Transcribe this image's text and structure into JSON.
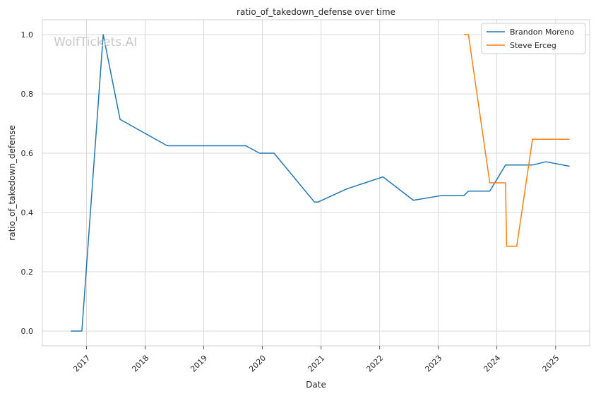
{
  "watermark": "WolfTickets.AI",
  "chart_data": {
    "type": "line",
    "title": "ratio_of_takedown_defense over time",
    "xlabel": "Date",
    "ylabel": "ratio_of_takedown_defense",
    "x_type": "date",
    "xlim": [
      "2016-04-01",
      "2025-08-01"
    ],
    "ylim": [
      -0.05,
      1.05
    ],
    "x_ticks": [
      "2017-01-01",
      "2018-01-01",
      "2019-01-01",
      "2020-01-01",
      "2021-01-01",
      "2022-01-01",
      "2023-01-01",
      "2024-01-01",
      "2025-01-01"
    ],
    "x_tick_labels": [
      "2017",
      "2018",
      "2019",
      "2020",
      "2021",
      "2022",
      "2023",
      "2024",
      "2025"
    ],
    "y_ticks": [
      0.0,
      0.2,
      0.4,
      0.6,
      0.8,
      1.0
    ],
    "y_tick_labels": [
      "0.0",
      "0.2",
      "0.4",
      "0.6",
      "0.8",
      "1.0"
    ],
    "grid": true,
    "legend_position": "top-right",
    "series": [
      {
        "name": "Brandon Moreno",
        "color": "#1f77b4",
        "points": [
          [
            "2016-09-25",
            0.0
          ],
          [
            "2016-12-03",
            0.0
          ],
          [
            "2017-04-15",
            1.0
          ],
          [
            "2017-07-29",
            0.714
          ],
          [
            "2018-05-19",
            0.625
          ],
          [
            "2019-09-21",
            0.625
          ],
          [
            "2019-12-14",
            0.6
          ],
          [
            "2020-03-14",
            0.6
          ],
          [
            "2020-11-21",
            0.435
          ],
          [
            "2020-12-12",
            0.435
          ],
          [
            "2021-06-12",
            0.48
          ],
          [
            "2022-01-22",
            0.52
          ],
          [
            "2022-07-30",
            0.441
          ],
          [
            "2023-01-21",
            0.457
          ],
          [
            "2023-06-10",
            0.457
          ],
          [
            "2023-07-08",
            0.472
          ],
          [
            "2023-11-18",
            0.472
          ],
          [
            "2024-02-24",
            0.56
          ],
          [
            "2024-08-10",
            0.56
          ],
          [
            "2024-11-02",
            0.571
          ],
          [
            "2025-03-29",
            0.556
          ]
        ]
      },
      {
        "name": "Steve Erceg",
        "color": "#ff7f0e",
        "points": [
          [
            "2023-06-10",
            1.0
          ],
          [
            "2023-07-08",
            1.0
          ],
          [
            "2023-11-18",
            0.5
          ],
          [
            "2024-02-24",
            0.5
          ],
          [
            "2024-03-02",
            0.286
          ],
          [
            "2024-05-04",
            0.286
          ],
          [
            "2024-08-10",
            0.647
          ],
          [
            "2025-03-29",
            0.647
          ]
        ]
      }
    ]
  }
}
